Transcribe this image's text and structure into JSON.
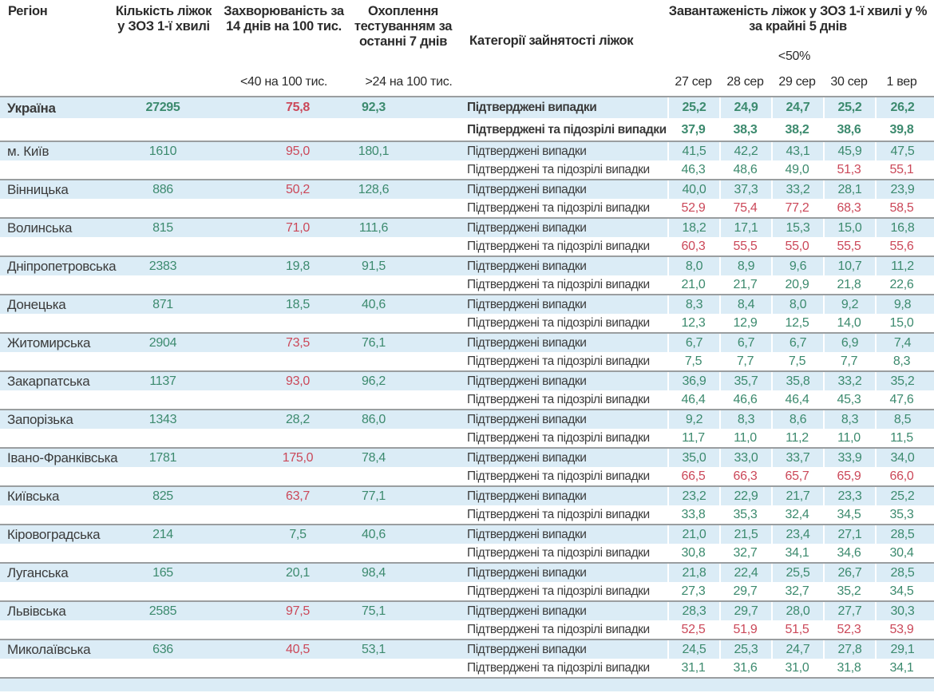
{
  "colors": {
    "green": "#3c8a6e",
    "red": "#cb4859",
    "row_highlight": "#dbecf6",
    "separator": "#9a9ea0"
  },
  "header": {
    "region": "Регіон",
    "beds": "Кількість ліжок у ЗОЗ 1-ї хвилі",
    "incidence": "Захворюваність за 14 днів на 100 тис.",
    "testing": "Охоплення тестуванням за останні 7 днів",
    "category": "Категорії зайнятості ліжок",
    "occupancy": "Завантаженість ліжок у ЗОЗ 1-ї хвилі у % за крайні 5 днів",
    "occupancy_threshold": "<50%",
    "incidence_threshold": "<40 на 100 тис.",
    "testing_threshold": ">24 на 100 тис."
  },
  "labels": {
    "confirmed": "Підтверджені випадки",
    "confirmed_suspected": "Підтверджені та підозрілі випадки"
  },
  "chart_data": {
    "type": "table",
    "date_columns": [
      "27 сер",
      "28 сер",
      "29 сер",
      "30 сер",
      "1 вер"
    ],
    "value_color_legend": {
      "g": "green (below threshold)",
      "r": "red (above threshold)"
    },
    "rows": [
      {
        "region": "Україна",
        "bold": true,
        "beds": {
          "v": "27295",
          "c": "g"
        },
        "incidence": {
          "v": "75,8",
          "c": "r"
        },
        "testing": {
          "v": "92,3",
          "c": "g"
        },
        "confirmed": {
          "values": [
            "25,2",
            "24,9",
            "24,7",
            "25,2",
            "26,2"
          ],
          "colors": "ggggg"
        },
        "suspected": {
          "values": [
            "37,9",
            "38,3",
            "38,2",
            "38,6",
            "39,8"
          ],
          "colors": "ggggg"
        }
      },
      {
        "region": "м. Київ",
        "bold": false,
        "beds": {
          "v": "1610",
          "c": "g"
        },
        "incidence": {
          "v": "95,0",
          "c": "r"
        },
        "testing": {
          "v": "180,1",
          "c": "g"
        },
        "confirmed": {
          "values": [
            "41,5",
            "42,2",
            "43,1",
            "45,9",
            "47,5"
          ],
          "colors": "ggggg"
        },
        "suspected": {
          "values": [
            "46,3",
            "48,6",
            "49,0",
            "51,3",
            "55,1"
          ],
          "colors": "gggrr"
        }
      },
      {
        "region": "Вінницька",
        "bold": false,
        "beds": {
          "v": "886",
          "c": "g"
        },
        "incidence": {
          "v": "50,2",
          "c": "r"
        },
        "testing": {
          "v": "128,6",
          "c": "g"
        },
        "confirmed": {
          "values": [
            "40,0",
            "37,3",
            "33,2",
            "28,1",
            "23,9"
          ],
          "colors": "ggggg"
        },
        "suspected": {
          "values": [
            "52,9",
            "75,4",
            "77,2",
            "68,3",
            "58,5"
          ],
          "colors": "rrrrr"
        }
      },
      {
        "region": "Волинська",
        "bold": false,
        "beds": {
          "v": "815",
          "c": "g"
        },
        "incidence": {
          "v": "71,0",
          "c": "r"
        },
        "testing": {
          "v": "111,6",
          "c": "g"
        },
        "confirmed": {
          "values": [
            "18,2",
            "17,1",
            "15,3",
            "15,0",
            "16,8"
          ],
          "colors": "ggggg"
        },
        "suspected": {
          "values": [
            "60,3",
            "55,5",
            "55,0",
            "55,5",
            "55,6"
          ],
          "colors": "rrrrr"
        }
      },
      {
        "region": "Дніпропетровська",
        "bold": false,
        "beds": {
          "v": "2383",
          "c": "g"
        },
        "incidence": {
          "v": "19,8",
          "c": "g"
        },
        "testing": {
          "v": "91,5",
          "c": "g"
        },
        "confirmed": {
          "values": [
            "8,0",
            "8,9",
            "9,6",
            "10,7",
            "11,2"
          ],
          "colors": "ggggg"
        },
        "suspected": {
          "values": [
            "21,0",
            "21,7",
            "20,9",
            "21,8",
            "22,6"
          ],
          "colors": "ggggg"
        }
      },
      {
        "region": "Донецька",
        "bold": false,
        "beds": {
          "v": "871",
          "c": "g"
        },
        "incidence": {
          "v": "18,5",
          "c": "g"
        },
        "testing": {
          "v": "40,6",
          "c": "g"
        },
        "confirmed": {
          "values": [
            "8,3",
            "8,4",
            "8,0",
            "9,2",
            "9,8"
          ],
          "colors": "ggggg"
        },
        "suspected": {
          "values": [
            "12,3",
            "12,9",
            "12,5",
            "14,0",
            "15,0"
          ],
          "colors": "ggggg"
        }
      },
      {
        "region": "Житомирська",
        "bold": false,
        "beds": {
          "v": "2904",
          "c": "g"
        },
        "incidence": {
          "v": "73,5",
          "c": "r"
        },
        "testing": {
          "v": "76,1",
          "c": "g"
        },
        "confirmed": {
          "values": [
            "6,7",
            "6,7",
            "6,7",
            "6,9",
            "7,4"
          ],
          "colors": "ggggg"
        },
        "suspected": {
          "values": [
            "7,5",
            "7,7",
            "7,5",
            "7,7",
            "8,3"
          ],
          "colors": "ggggg"
        }
      },
      {
        "region": "Закарпатська",
        "bold": false,
        "beds": {
          "v": "1137",
          "c": "g"
        },
        "incidence": {
          "v": "93,0",
          "c": "r"
        },
        "testing": {
          "v": "96,2",
          "c": "g"
        },
        "confirmed": {
          "values": [
            "36,9",
            "35,7",
            "35,8",
            "33,2",
            "35,2"
          ],
          "colors": "ggggg"
        },
        "suspected": {
          "values": [
            "46,4",
            "46,6",
            "46,4",
            "45,3",
            "47,6"
          ],
          "colors": "ggggg"
        }
      },
      {
        "region": "Запорізька",
        "bold": false,
        "beds": {
          "v": "1343",
          "c": "g"
        },
        "incidence": {
          "v": "28,2",
          "c": "g"
        },
        "testing": {
          "v": "86,0",
          "c": "g"
        },
        "confirmed": {
          "values": [
            "9,2",
            "8,3",
            "8,6",
            "8,3",
            "8,5"
          ],
          "colors": "ggggg"
        },
        "suspected": {
          "values": [
            "11,7",
            "11,0",
            "11,2",
            "11,0",
            "11,5"
          ],
          "colors": "ggggg"
        }
      },
      {
        "region": "Івано-Франківська",
        "bold": false,
        "beds": {
          "v": "1781",
          "c": "g"
        },
        "incidence": {
          "v": "175,0",
          "c": "r"
        },
        "testing": {
          "v": "78,4",
          "c": "g"
        },
        "confirmed": {
          "values": [
            "35,0",
            "33,0",
            "33,7",
            "33,9",
            "34,0"
          ],
          "colors": "ggggg"
        },
        "suspected": {
          "values": [
            "66,5",
            "66,3",
            "65,7",
            "65,9",
            "66,0"
          ],
          "colors": "rrrrr"
        }
      },
      {
        "region": "Київська",
        "bold": false,
        "beds": {
          "v": "825",
          "c": "g"
        },
        "incidence": {
          "v": "63,7",
          "c": "r"
        },
        "testing": {
          "v": "77,1",
          "c": "g"
        },
        "confirmed": {
          "values": [
            "23,2",
            "22,9",
            "21,7",
            "23,3",
            "25,2"
          ],
          "colors": "ggggg"
        },
        "suspected": {
          "values": [
            "33,8",
            "35,3",
            "32,4",
            "34,5",
            "35,3"
          ],
          "colors": "ggggg"
        }
      },
      {
        "region": "Кіровоградська",
        "bold": false,
        "beds": {
          "v": "214",
          "c": "g"
        },
        "incidence": {
          "v": "7,5",
          "c": "g"
        },
        "testing": {
          "v": "40,6",
          "c": "g"
        },
        "confirmed": {
          "values": [
            "21,0",
            "21,5",
            "23,4",
            "27,1",
            "28,5"
          ],
          "colors": "ggggg"
        },
        "suspected": {
          "values": [
            "30,8",
            "32,7",
            "34,1",
            "34,6",
            "30,4"
          ],
          "colors": "ggggg"
        }
      },
      {
        "region": "Луганська",
        "bold": false,
        "beds": {
          "v": "165",
          "c": "g"
        },
        "incidence": {
          "v": "20,1",
          "c": "g"
        },
        "testing": {
          "v": "98,4",
          "c": "g"
        },
        "confirmed": {
          "values": [
            "21,8",
            "22,4",
            "25,5",
            "26,7",
            "28,5"
          ],
          "colors": "ggggg"
        },
        "suspected": {
          "values": [
            "27,3",
            "29,7",
            "32,7",
            "35,2",
            "34,5"
          ],
          "colors": "ggggg"
        }
      },
      {
        "region": "Львівська",
        "bold": false,
        "beds": {
          "v": "2585",
          "c": "g"
        },
        "incidence": {
          "v": "97,5",
          "c": "r"
        },
        "testing": {
          "v": "75,1",
          "c": "g"
        },
        "confirmed": {
          "values": [
            "28,3",
            "29,7",
            "28,0",
            "27,7",
            "30,3"
          ],
          "colors": "ggggg"
        },
        "suspected": {
          "values": [
            "52,5",
            "51,9",
            "51,5",
            "52,3",
            "53,9"
          ],
          "colors": "rrrrr"
        }
      },
      {
        "region": "Миколаївська",
        "bold": false,
        "beds": {
          "v": "636",
          "c": "g"
        },
        "incidence": {
          "v": "40,5",
          "c": "r"
        },
        "testing": {
          "v": "53,1",
          "c": "g"
        },
        "confirmed": {
          "values": [
            "24,5",
            "25,3",
            "24,7",
            "27,8",
            "29,1"
          ],
          "colors": "ggggg"
        },
        "suspected": {
          "values": [
            "31,1",
            "31,6",
            "31,0",
            "31,8",
            "34,1"
          ],
          "colors": "ggggg"
        }
      }
    ]
  }
}
